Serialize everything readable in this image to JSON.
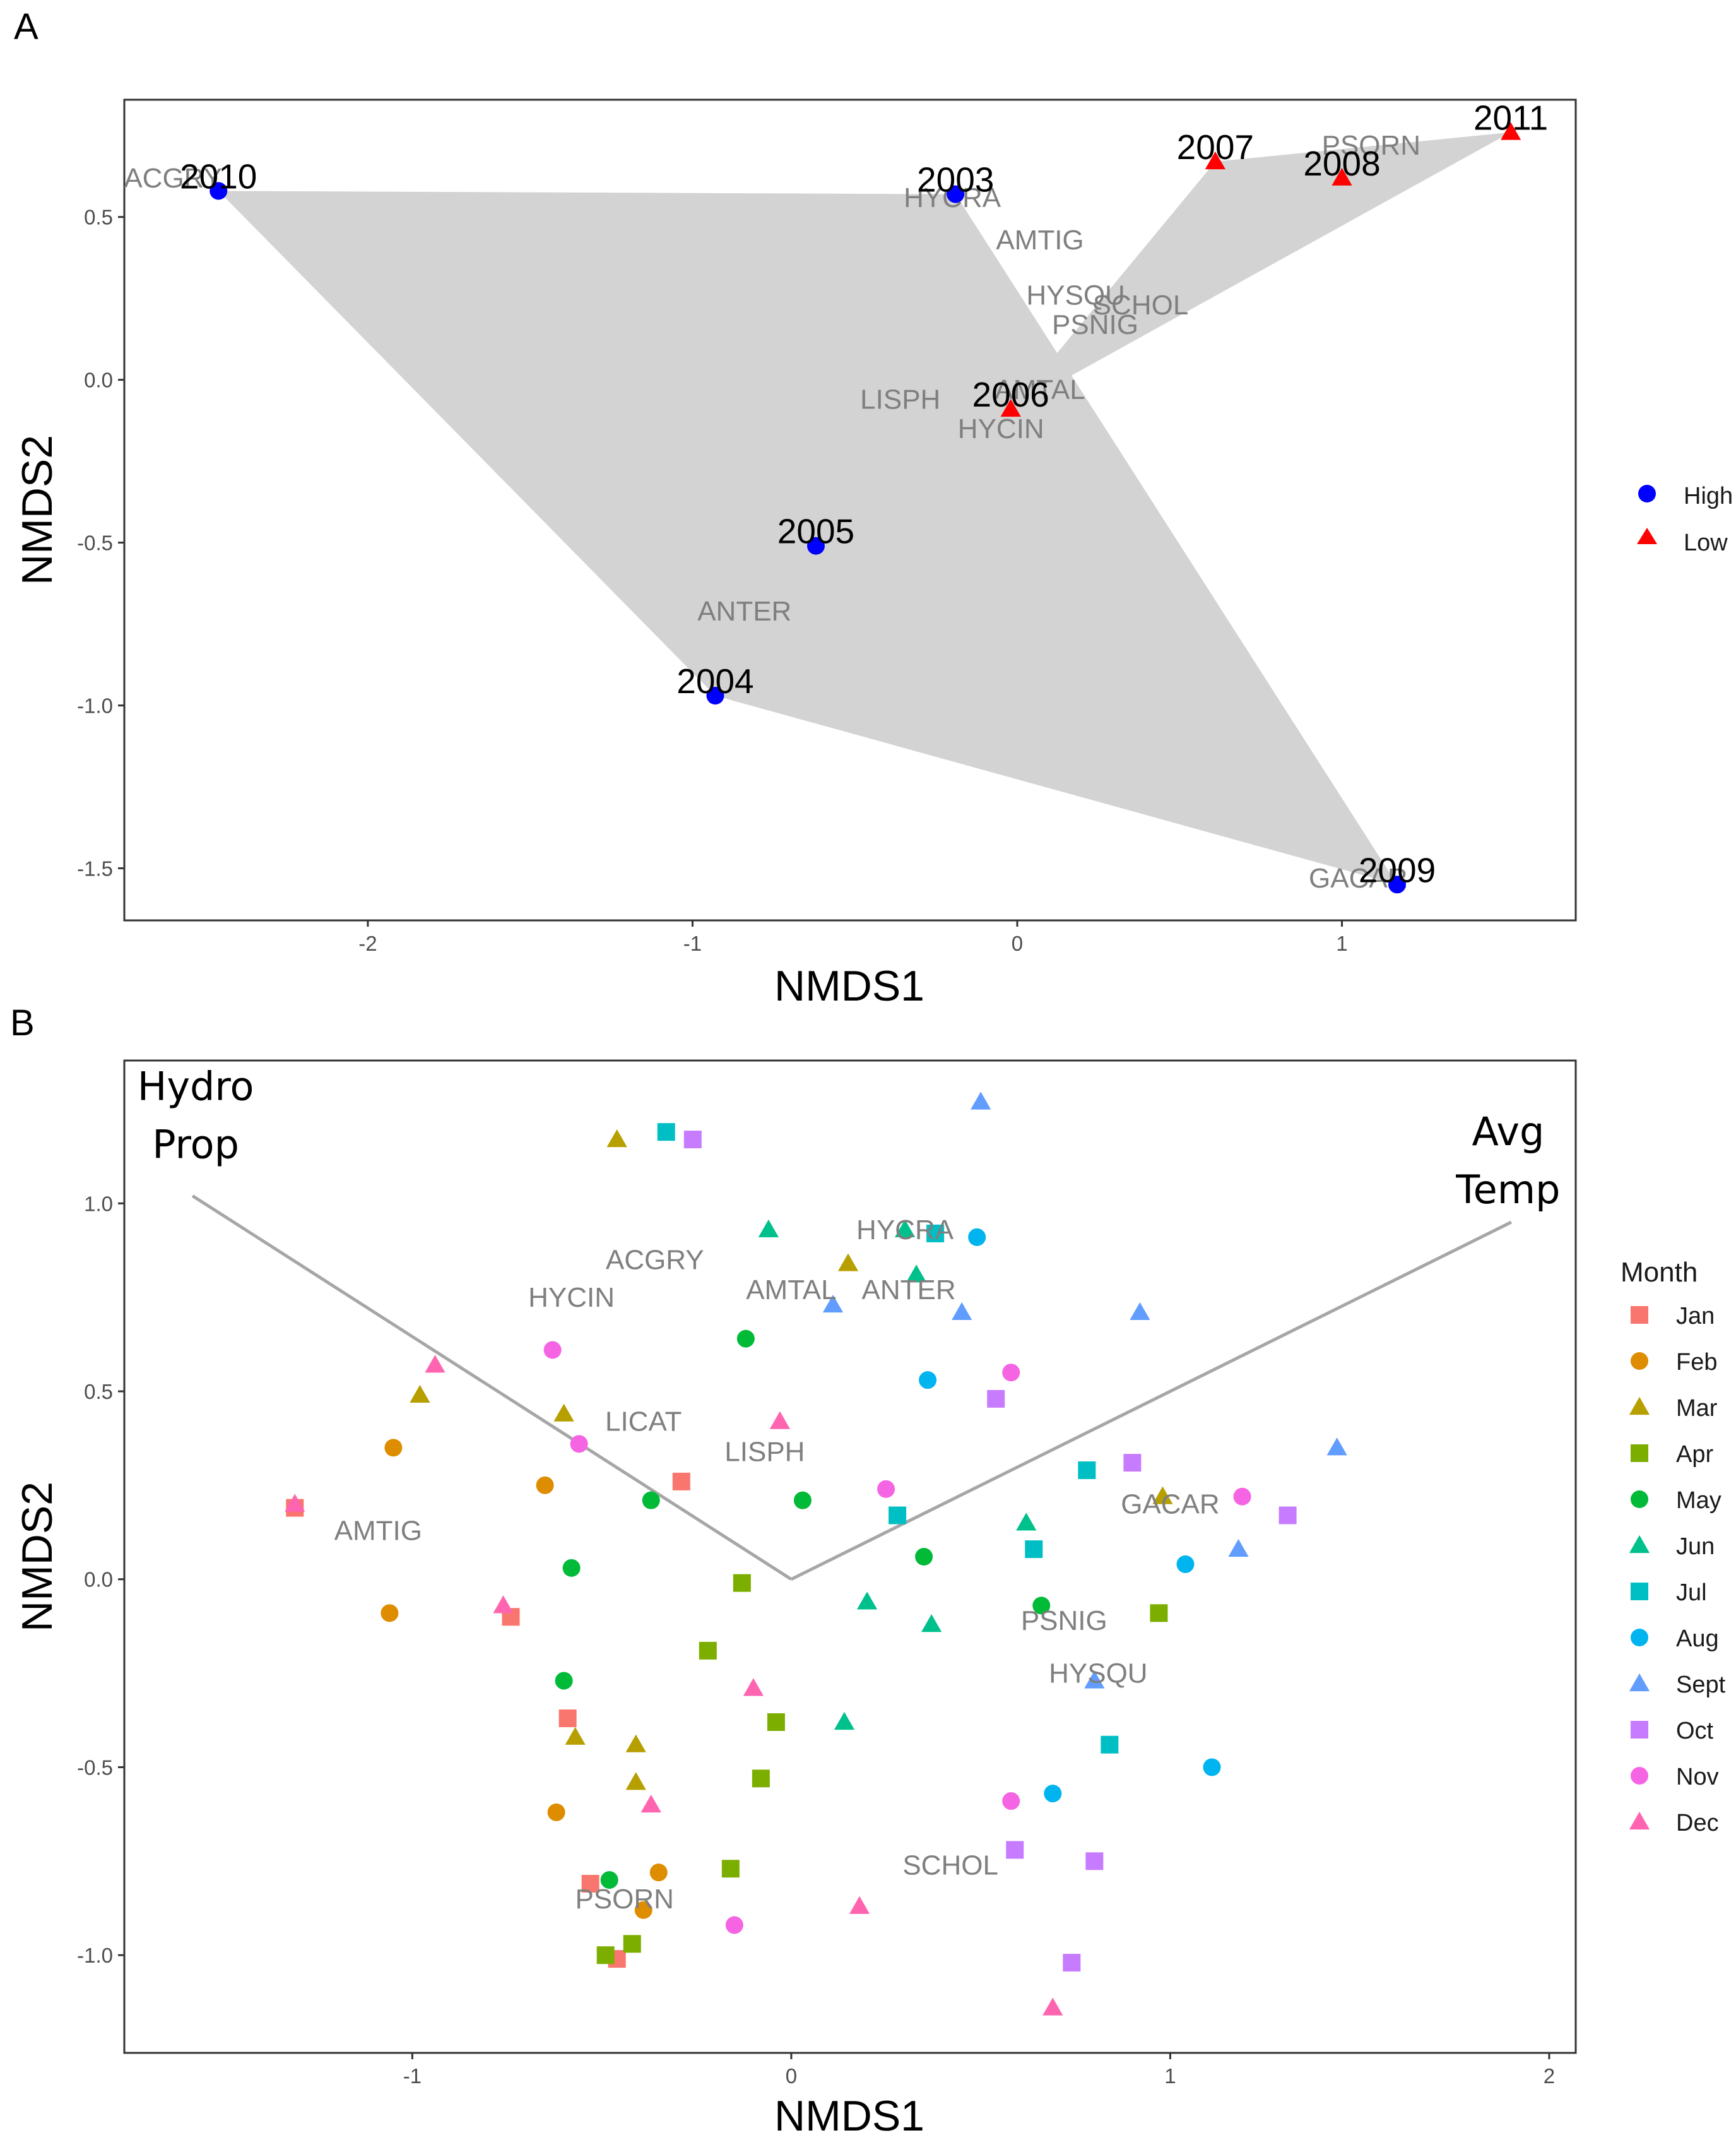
{
  "chart_data": [
    {
      "panel": "A",
      "type": "scatter",
      "xlabel": "NMDS1",
      "ylabel": "NMDS2",
      "xlim": [
        -2.75,
        1.72
      ],
      "ylim": [
        -1.66,
        0.86
      ],
      "xticks": [
        -2,
        -1,
        0,
        1
      ],
      "yticks": [
        0.5,
        0.0,
        -0.5,
        -1.0,
        -1.5
      ],
      "xtick_labels": [
        "-2",
        "-1",
        "0",
        "1"
      ],
      "ytick_labels": [
        "0.5",
        "0.0",
        "-0.5",
        "-1.0",
        "-1.5"
      ],
      "colors": {
        "High": "#0000ff",
        "Low": "#ff0000",
        "hull": "#d3d3d3",
        "species": "#7f7f7f"
      },
      "legend": [
        {
          "label": "High",
          "shape": "circle"
        },
        {
          "label": "Low",
          "shape": "triangle"
        }
      ],
      "points": [
        {
          "label": "2010",
          "x": -2.46,
          "y": 0.58,
          "group": "High"
        },
        {
          "label": "2003",
          "x": -0.19,
          "y": 0.57,
          "group": "High"
        },
        {
          "label": "2005",
          "x": -0.62,
          "y": -0.51,
          "group": "High"
        },
        {
          "label": "2004",
          "x": -0.93,
          "y": -0.97,
          "group": "High"
        },
        {
          "label": "2009",
          "x": 1.17,
          "y": -1.55,
          "group": "High"
        },
        {
          "label": "2007",
          "x": 0.61,
          "y": 0.67,
          "group": "Low"
        },
        {
          "label": "2008",
          "x": 1.0,
          "y": 0.62,
          "group": "Low"
        },
        {
          "label": "2011",
          "x": 1.52,
          "y": 0.76,
          "group": "Low"
        },
        {
          "label": "2006",
          "x": -0.02,
          "y": -0.09,
          "group": "Low"
        }
      ],
      "hulls": [
        {
          "group": "High",
          "points": [
            "2010",
            "2003",
            "2009",
            "2004"
          ]
        },
        {
          "group": "Low",
          "points": [
            "2007",
            "2011",
            "2006"
          ]
        }
      ],
      "species": [
        {
          "label": "ACGRY",
          "x": -2.6,
          "y": 0.62
        },
        {
          "label": "HYCRA",
          "x": -0.2,
          "y": 0.56
        },
        {
          "label": "AMTIG",
          "x": 0.07,
          "y": 0.43
        },
        {
          "label": "PSORN",
          "x": 1.09,
          "y": 0.72
        },
        {
          "label": "HYSQU",
          "x": 0.18,
          "y": 0.26
        },
        {
          "label": "SCHOL",
          "x": 0.38,
          "y": 0.23
        },
        {
          "label": "PSNIG",
          "x": 0.24,
          "y": 0.17
        },
        {
          "label": "AMTAL",
          "x": 0.07,
          "y": -0.03
        },
        {
          "label": "LISPH",
          "x": -0.36,
          "y": -0.06
        },
        {
          "label": "HYCIN",
          "x": -0.05,
          "y": -0.15
        },
        {
          "label": "ANTER",
          "x": -0.84,
          "y": -0.71
        },
        {
          "label": "GACAR",
          "x": 1.05,
          "y": -1.53
        }
      ]
    },
    {
      "panel": "B",
      "type": "scatter",
      "xlabel": "NMDS1",
      "ylabel": "NMDS2",
      "xlim": [
        -1.76,
        2.07
      ],
      "ylim": [
        -1.26,
        1.38
      ],
      "xticks": [
        -1,
        0,
        1,
        2
      ],
      "yticks": [
        1.0,
        0.5,
        0.0,
        -0.5,
        -1.0
      ],
      "xtick_labels": [
        "-1",
        "0",
        "1",
        "2"
      ],
      "ytick_labels": [
        "1.0",
        "0.5",
        "0.0",
        "-0.5",
        "-1.0"
      ],
      "legend_title": "Month",
      "months": [
        {
          "label": "Jan",
          "shape": "square",
          "color": "#f8766d"
        },
        {
          "label": "Feb",
          "shape": "circle",
          "color": "#de8c00"
        },
        {
          "label": "Mar",
          "shape": "triangle",
          "color": "#b79f00"
        },
        {
          "label": "Apr",
          "shape": "square",
          "color": "#7cae00"
        },
        {
          "label": "May",
          "shape": "circle",
          "color": "#00ba38"
        },
        {
          "label": "Jun",
          "shape": "triangle",
          "color": "#00c08b"
        },
        {
          "label": "Jul",
          "shape": "square",
          "color": "#00bfc4"
        },
        {
          "label": "Aug",
          "shape": "circle",
          "color": "#00b4f0"
        },
        {
          "label": "Sept",
          "shape": "triangle",
          "color": "#619cff"
        },
        {
          "label": "Oct",
          "shape": "square",
          "color": "#c77cff"
        },
        {
          "label": "Nov",
          "shape": "circle",
          "color": "#f564e3"
        },
        {
          "label": "Dec",
          "shape": "triangle",
          "color": "#ff64b0"
        }
      ],
      "vectors": [
        {
          "label_lines": [
            "Hydro",
            "Prop"
          ],
          "x": -1.58,
          "y": 1.02
        },
        {
          "label_lines": [
            "Avg",
            "Temp"
          ],
          "x": 1.9,
          "y": 0.95
        }
      ],
      "vector_origin": [
        0,
        0
      ],
      "vector_color": "#a6a6a6",
      "points": [
        {
          "month": "Jan",
          "x": -1.31,
          "y": 0.19
        },
        {
          "month": "Jan",
          "x": -0.74,
          "y": -0.1
        },
        {
          "month": "Jan",
          "x": -0.29,
          "y": 0.26
        },
        {
          "month": "Jan",
          "x": -0.59,
          "y": -0.37
        },
        {
          "month": "Jan",
          "x": -0.53,
          "y": -0.81
        },
        {
          "month": "Jan",
          "x": -0.46,
          "y": -1.01
        },
        {
          "month": "Feb",
          "x": -1.05,
          "y": 0.35
        },
        {
          "month": "Feb",
          "x": -1.06,
          "y": -0.09
        },
        {
          "month": "Feb",
          "x": -0.65,
          "y": 0.25
        },
        {
          "month": "Feb",
          "x": -0.62,
          "y": -0.62
        },
        {
          "month": "Feb",
          "x": -0.35,
          "y": -0.78
        },
        {
          "month": "Feb",
          "x": -0.39,
          "y": -0.88
        },
        {
          "month": "Mar",
          "x": -0.46,
          "y": 1.17
        },
        {
          "month": "Mar",
          "x": 0.15,
          "y": 0.84
        },
        {
          "month": "Mar",
          "x": -0.98,
          "y": 0.49
        },
        {
          "month": "Mar",
          "x": -0.6,
          "y": 0.44
        },
        {
          "month": "Mar",
          "x": -0.57,
          "y": -0.42
        },
        {
          "month": "Mar",
          "x": -0.41,
          "y": -0.44
        },
        {
          "month": "Mar",
          "x": -0.41,
          "y": -0.54
        },
        {
          "month": "Mar",
          "x": 0.98,
          "y": 0.22
        },
        {
          "month": "Apr",
          "x": -0.13,
          "y": -0.01
        },
        {
          "month": "Apr",
          "x": -0.22,
          "y": -0.19
        },
        {
          "month": "Apr",
          "x": -0.04,
          "y": -0.38
        },
        {
          "month": "Apr",
          "x": -0.08,
          "y": -0.53
        },
        {
          "month": "Apr",
          "x": -0.16,
          "y": -0.77
        },
        {
          "month": "Apr",
          "x": -0.42,
          "y": -0.97
        },
        {
          "month": "Apr",
          "x": -0.49,
          "y": -1.0
        },
        {
          "month": "Apr",
          "x": 0.97,
          "y": -0.09
        },
        {
          "month": "May",
          "x": -0.12,
          "y": 0.64
        },
        {
          "month": "May",
          "x": -0.37,
          "y": 0.21
        },
        {
          "month": "May",
          "x": 0.03,
          "y": 0.21
        },
        {
          "month": "May",
          "x": -0.58,
          "y": 0.03
        },
        {
          "month": "May",
          "x": -0.6,
          "y": -0.27
        },
        {
          "month": "May",
          "x": 0.35,
          "y": 0.06
        },
        {
          "month": "May",
          "x": 0.66,
          "y": -0.07
        },
        {
          "month": "May",
          "x": -0.48,
          "y": -0.8
        },
        {
          "month": "Jun",
          "x": -0.06,
          "y": 0.93
        },
        {
          "month": "Jun",
          "x": 0.3,
          "y": 0.93
        },
        {
          "month": "Jun",
          "x": 0.33,
          "y": 0.81
        },
        {
          "month": "Jun",
          "x": 0.62,
          "y": 0.15
        },
        {
          "month": "Jun",
          "x": 0.2,
          "y": -0.06
        },
        {
          "month": "Jun",
          "x": 0.37,
          "y": -0.12
        },
        {
          "month": "Jun",
          "x": 0.14,
          "y": -0.38
        },
        {
          "month": "Jul",
          "x": -0.33,
          "y": 1.19
        },
        {
          "month": "Jul",
          "x": 0.38,
          "y": 0.92
        },
        {
          "month": "Jul",
          "x": 0.28,
          "y": 0.17
        },
        {
          "month": "Jul",
          "x": 0.78,
          "y": 0.29
        },
        {
          "month": "Jul",
          "x": 0.64,
          "y": 0.08
        },
        {
          "month": "Jul",
          "x": 0.84,
          "y": -0.44
        },
        {
          "month": "Aug",
          "x": 0.49,
          "y": 0.91
        },
        {
          "month": "Aug",
          "x": 0.36,
          "y": 0.53
        },
        {
          "month": "Aug",
          "x": 1.04,
          "y": 0.04
        },
        {
          "month": "Aug",
          "x": 1.11,
          "y": -0.5
        },
        {
          "month": "Aug",
          "x": 0.69,
          "y": -0.57
        },
        {
          "month": "Sept",
          "x": 0.5,
          "y": 1.27
        },
        {
          "month": "Sept",
          "x": 0.11,
          "y": 0.73
        },
        {
          "month": "Sept",
          "x": 0.45,
          "y": 0.71
        },
        {
          "month": "Sept",
          "x": 0.92,
          "y": 0.71
        },
        {
          "month": "Sept",
          "x": 1.44,
          "y": 0.35
        },
        {
          "month": "Sept",
          "x": 1.18,
          "y": 0.08
        },
        {
          "month": "Sept",
          "x": 0.8,
          "y": -0.27
        },
        {
          "month": "Oct",
          "x": -0.26,
          "y": 1.17
        },
        {
          "month": "Oct",
          "x": 0.54,
          "y": 0.48
        },
        {
          "month": "Oct",
          "x": 0.9,
          "y": 0.31
        },
        {
          "month": "Oct",
          "x": 1.31,
          "y": 0.17
        },
        {
          "month": "Oct",
          "x": 0.59,
          "y": -0.72
        },
        {
          "month": "Oct",
          "x": 0.8,
          "y": -0.75
        },
        {
          "month": "Oct",
          "x": 0.74,
          "y": -1.02
        },
        {
          "month": "Nov",
          "x": -0.63,
          "y": 0.61
        },
        {
          "month": "Nov",
          "x": -0.56,
          "y": 0.36
        },
        {
          "month": "Nov",
          "x": 0.58,
          "y": 0.55
        },
        {
          "month": "Nov",
          "x": 0.25,
          "y": 0.24
        },
        {
          "month": "Nov",
          "x": 1.19,
          "y": 0.22
        },
        {
          "month": "Nov",
          "x": 0.58,
          "y": -0.59
        },
        {
          "month": "Nov",
          "x": -0.15,
          "y": -0.92
        },
        {
          "month": "Dec",
          "x": -0.94,
          "y": 0.57
        },
        {
          "month": "Dec",
          "x": -0.76,
          "y": -0.07
        },
        {
          "month": "Dec",
          "x": -0.03,
          "y": 0.42
        },
        {
          "month": "Dec",
          "x": -0.1,
          "y": -0.29
        },
        {
          "month": "Dec",
          "x": -0.37,
          "y": -0.6
        },
        {
          "month": "Dec",
          "x": 0.18,
          "y": -0.87
        },
        {
          "month": "Dec",
          "x": 0.69,
          "y": -1.14
        },
        {
          "month": "Dec",
          "x": -1.31,
          "y": 0.2
        }
      ],
      "species": [
        {
          "label": "HYCRA",
          "x": 0.3,
          "y": 0.93
        },
        {
          "label": "ACGRY",
          "x": -0.36,
          "y": 0.85
        },
        {
          "label": "HYCIN",
          "x": -0.58,
          "y": 0.75
        },
        {
          "label": "AMTAL",
          "x": 0.0,
          "y": 0.77
        },
        {
          "label": "ANTER",
          "x": 0.31,
          "y": 0.77
        },
        {
          "label": "LICAT",
          "x": -0.39,
          "y": 0.42
        },
        {
          "label": "LISPH",
          "x": -0.07,
          "y": 0.34
        },
        {
          "label": "AMTIG",
          "x": -1.09,
          "y": 0.13
        },
        {
          "label": "GACAR",
          "x": 1.0,
          "y": 0.2
        },
        {
          "label": "PSNIG",
          "x": 0.72,
          "y": -0.11
        },
        {
          "label": "HYSQU",
          "x": 0.81,
          "y": -0.25
        },
        {
          "label": "SCHOL",
          "x": 0.42,
          "y": -0.76
        },
        {
          "label": "PSORN",
          "x": -0.44,
          "y": -0.85
        }
      ]
    }
  ],
  "panel_labels": {
    "a": "A",
    "b": "B"
  }
}
